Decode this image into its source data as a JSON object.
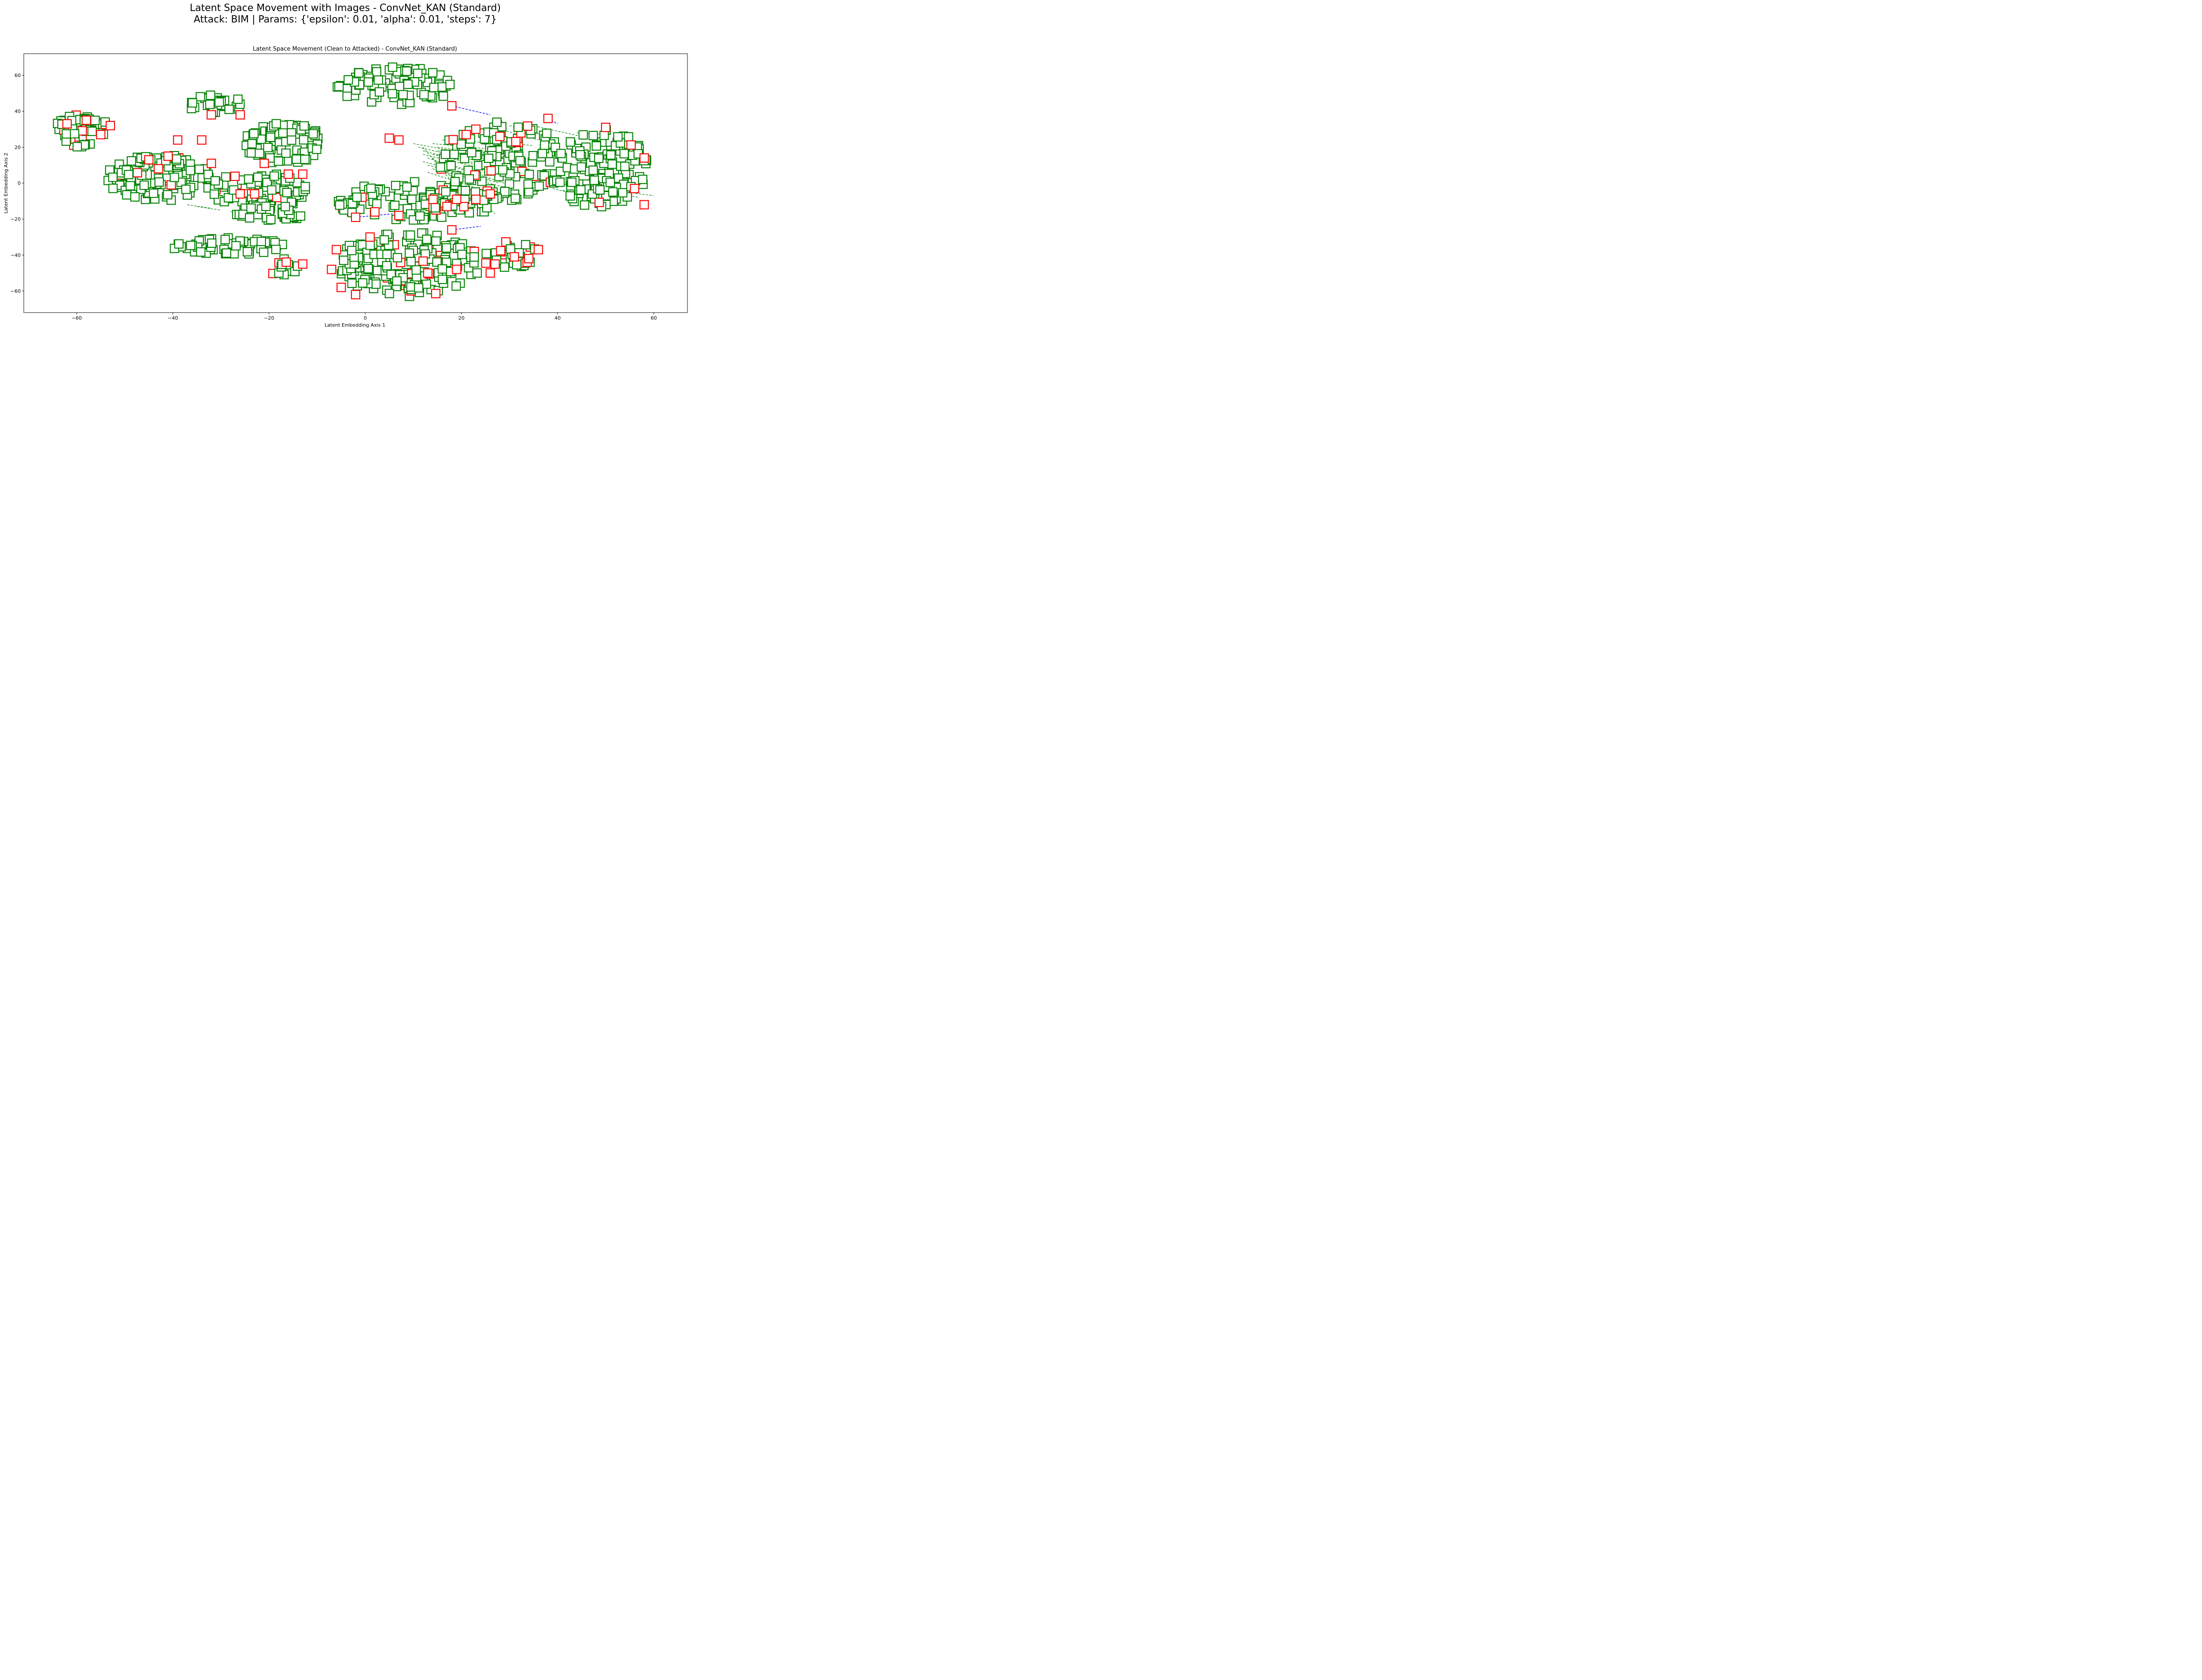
{
  "figure": {
    "suptitle_line1": "Latent Space Movement with Images - ConvNet_KAN (Standard)",
    "suptitle_line2": "Attack: BIM | Params: {'epsilon': 0.01, 'alpha': 0.01, 'steps': 7}"
  },
  "chart_data": {
    "type": "scatter",
    "title": "Latent Space Movement (Clean to Attacked) - ConvNet_KAN (Standard)",
    "xlabel": "Latent Embedding Axis 1",
    "ylabel": "Latent Embedding Axis 2",
    "xlim": [
      -71,
      67
    ],
    "ylim": [
      -72,
      72
    ],
    "xticks": [
      -60,
      -40,
      -20,
      0,
      20,
      40,
      60
    ],
    "yticks": [
      -60,
      -40,
      -20,
      0,
      20,
      40,
      60
    ],
    "grid": false,
    "legend": "none",
    "colors": {
      "correct": "#008000",
      "misclassified": "#ff0000",
      "move_correct": "#008000",
      "move_flipped": "#0000ff"
    },
    "clusters": [
      {
        "cx": -59,
        "cy": 29,
        "rx": 6,
        "ry": 9,
        "n": 60,
        "red_frac": 0.25,
        "seed": 11
      },
      {
        "cx": -43,
        "cy": 3,
        "rx": 11,
        "ry": 13,
        "n": 120,
        "red_frac": 0.07,
        "seed": 12
      },
      {
        "cx": -31,
        "cy": 44,
        "rx": 6,
        "ry": 5,
        "n": 30,
        "red_frac": 0.05,
        "seed": 13
      },
      {
        "cx": -17,
        "cy": 22,
        "rx": 8,
        "ry": 13,
        "n": 90,
        "red_frac": 0.04,
        "seed": 14
      },
      {
        "cx": -22,
        "cy": -4,
        "rx": 11,
        "ry": 10,
        "n": 80,
        "red_frac": 0.08,
        "seed": 15
      },
      {
        "cx": -20,
        "cy": -17,
        "rx": 7,
        "ry": 5,
        "n": 35,
        "red_frac": 0.0,
        "seed": 16
      },
      {
        "cx": -29,
        "cy": -35,
        "rx": 12,
        "ry": 5,
        "n": 50,
        "red_frac": 0.0,
        "seed": 17
      },
      {
        "cx": -17,
        "cy": -47,
        "rx": 3,
        "ry": 5,
        "n": 14,
        "red_frac": 0.1,
        "seed": 18
      },
      {
        "cx": 6,
        "cy": 54,
        "rx": 12,
        "ry": 11,
        "n": 90,
        "red_frac": 0.0,
        "seed": 19
      },
      {
        "cx": 8,
        "cy": -10,
        "rx": 14,
        "ry": 11,
        "n": 90,
        "red_frac": 0.05,
        "seed": 20
      },
      {
        "cx": 9,
        "cy": -45,
        "rx": 15,
        "ry": 18,
        "n": 190,
        "red_frac": 0.1,
        "seed": 21
      },
      {
        "cx": 30,
        "cy": -40,
        "rx": 6,
        "ry": 8,
        "n": 30,
        "red_frac": 0.25,
        "seed": 22
      },
      {
        "cx": 28,
        "cy": 12,
        "rx": 13,
        "ry": 24,
        "n": 160,
        "red_frac": 0.06,
        "seed": 23
      },
      {
        "cx": 49,
        "cy": 8,
        "rx": 10,
        "ry": 22,
        "n": 150,
        "red_frac": 0.04,
        "seed": 24
      },
      {
        "cx": 20,
        "cy": -10,
        "rx": 8,
        "ry": 8,
        "n": 30,
        "red_frac": 0.2,
        "seed": 25
      }
    ],
    "red_points": [
      [
        -62,
        33
      ],
      [
        -58,
        35
      ],
      [
        -53,
        32
      ],
      [
        -55,
        27
      ],
      [
        -45,
        13
      ],
      [
        -43,
        8
      ],
      [
        -41,
        15
      ],
      [
        -39,
        24
      ],
      [
        -34,
        24
      ],
      [
        -32,
        38
      ],
      [
        -26,
        38
      ],
      [
        -26,
        -6
      ],
      [
        -23,
        -6
      ],
      [
        -32,
        11
      ],
      [
        -21,
        11
      ],
      [
        -16,
        5
      ],
      [
        -13,
        5
      ],
      [
        -13,
        -45
      ],
      [
        5,
        25
      ],
      [
        7,
        24
      ],
      [
        18,
        43
      ],
      [
        21,
        27
      ],
      [
        23,
        30
      ],
      [
        28,
        26
      ],
      [
        38,
        36
      ],
      [
        50,
        31
      ],
      [
        58,
        14
      ],
      [
        56,
        -3
      ],
      [
        58,
        -12
      ],
      [
        17,
        -13
      ],
      [
        19,
        -9
      ],
      [
        23,
        -9
      ],
      [
        26,
        -6
      ],
      [
        -2,
        -19
      ],
      [
        7,
        -18
      ],
      [
        2,
        -16
      ],
      [
        18,
        -26
      ],
      [
        -7,
        -48
      ],
      [
        -5,
        -58
      ],
      [
        -2,
        -62
      ],
      [
        1,
        -30
      ],
      [
        -6,
        -37
      ],
      [
        13,
        -50
      ],
      [
        19,
        -48
      ],
      [
        27,
        -45
      ],
      [
        31,
        -41
      ],
      [
        34,
        -42
      ],
      [
        36,
        -37
      ],
      [
        26,
        -50
      ]
    ],
    "green_moves": [
      [
        10,
        22,
        22,
        16
      ],
      [
        11,
        20,
        24,
        12
      ],
      [
        12,
        18,
        26,
        8
      ],
      [
        12,
        16,
        28,
        6
      ],
      [
        13,
        14,
        24,
        4
      ],
      [
        12,
        12,
        26,
        2
      ],
      [
        13,
        10,
        28,
        0
      ],
      [
        14,
        8,
        30,
        -3
      ],
      [
        13,
        6,
        27,
        -6
      ],
      [
        14,
        22,
        30,
        18
      ],
      [
        15,
        20,
        33,
        14
      ],
      [
        16,
        24,
        35,
        21
      ],
      [
        15,
        18,
        32,
        10
      ],
      [
        14,
        16,
        29,
        8
      ],
      [
        16,
        12,
        31,
        -2
      ],
      [
        12,
        20,
        22,
        -12
      ],
      [
        14,
        14,
        25,
        -14
      ],
      [
        15,
        10,
        27,
        -17
      ],
      [
        40,
        0,
        52,
        -5
      ],
      [
        42,
        -2,
        55,
        -6
      ],
      [
        41,
        -4,
        54,
        -9
      ],
      [
        39,
        -3,
        51,
        -11
      ],
      [
        44,
        -1,
        57,
        -8
      ],
      [
        46,
        -2,
        60,
        -7
      ],
      [
        28,
        30,
        36,
        24
      ],
      [
        30,
        32,
        38,
        26
      ],
      [
        33,
        33,
        45,
        26
      ],
      [
        44,
        28,
        51,
        27
      ],
      [
        -37,
        -12,
        -32,
        -14
      ],
      [
        -35,
        -13,
        -30,
        -15
      ],
      [
        -28,
        -16,
        -23,
        -14
      ]
    ],
    "blue_moves": [
      [
        -2,
        -19,
        6,
        -17
      ],
      [
        18,
        43,
        26,
        38
      ],
      [
        38,
        36,
        40,
        33
      ],
      [
        45,
        -3,
        52,
        -6
      ],
      [
        18,
        -26,
        24,
        -24
      ],
      [
        17,
        -9,
        21,
        -10
      ],
      [
        -40,
        14,
        -38,
        12
      ],
      [
        31,
        9,
        29,
        11
      ],
      [
        48,
        -5,
        50,
        -7
      ]
    ]
  }
}
